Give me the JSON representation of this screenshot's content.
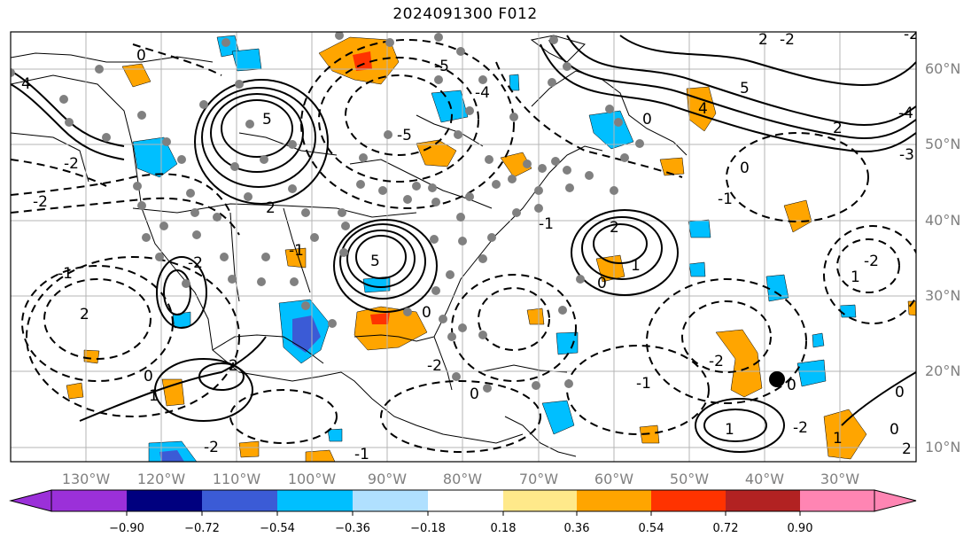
{
  "title": "2024091300 F012",
  "map": {
    "lon_range": [
      -140,
      -18
    ],
    "lat_range": [
      7,
      65
    ],
    "lat_labels": [
      {
        "lat": 60,
        "text": "60°N"
      },
      {
        "lat": 50,
        "text": "50°N"
      },
      {
        "lat": 40,
        "text": "40°N"
      },
      {
        "lat": 30,
        "text": "30°N"
      },
      {
        "lat": 20,
        "text": "20°N"
      },
      {
        "lat": 10,
        "text": "10°N"
      }
    ],
    "lon_labels": [
      {
        "lon": -130,
        "text": "130°W"
      },
      {
        "lon": -120,
        "text": "120°W"
      },
      {
        "lon": -110,
        "text": "110°W"
      },
      {
        "lon": -100,
        "text": "100°W"
      },
      {
        "lon": -90,
        "text": "90°W"
      },
      {
        "lon": -80,
        "text": "80°W"
      },
      {
        "lon": -70,
        "text": "70°W"
      },
      {
        "lon": -60,
        "text": "60°W"
      },
      {
        "lon": -50,
        "text": "50°W"
      },
      {
        "lon": -40,
        "text": "40°W"
      },
      {
        "lon": -30,
        "text": "30°W"
      }
    ],
    "storm_marker": {
      "lon": -40.5,
      "lat": 19
    }
  },
  "colorbar": {
    "colors": [
      "#9b30d9",
      "#00007f",
      "#3b5bd6",
      "#00bfff",
      "#b0e0ff",
      "#ffffff",
      "#ffe98a",
      "#ffa500",
      "#ff3300",
      "#b22222",
      "#ff85b3"
    ],
    "labels": [
      "−0.90",
      "−0.72",
      "−0.54",
      "−0.36",
      "−0.18",
      "0.18",
      "0.36",
      "0.54",
      "0.72",
      "0.90"
    ]
  }
}
